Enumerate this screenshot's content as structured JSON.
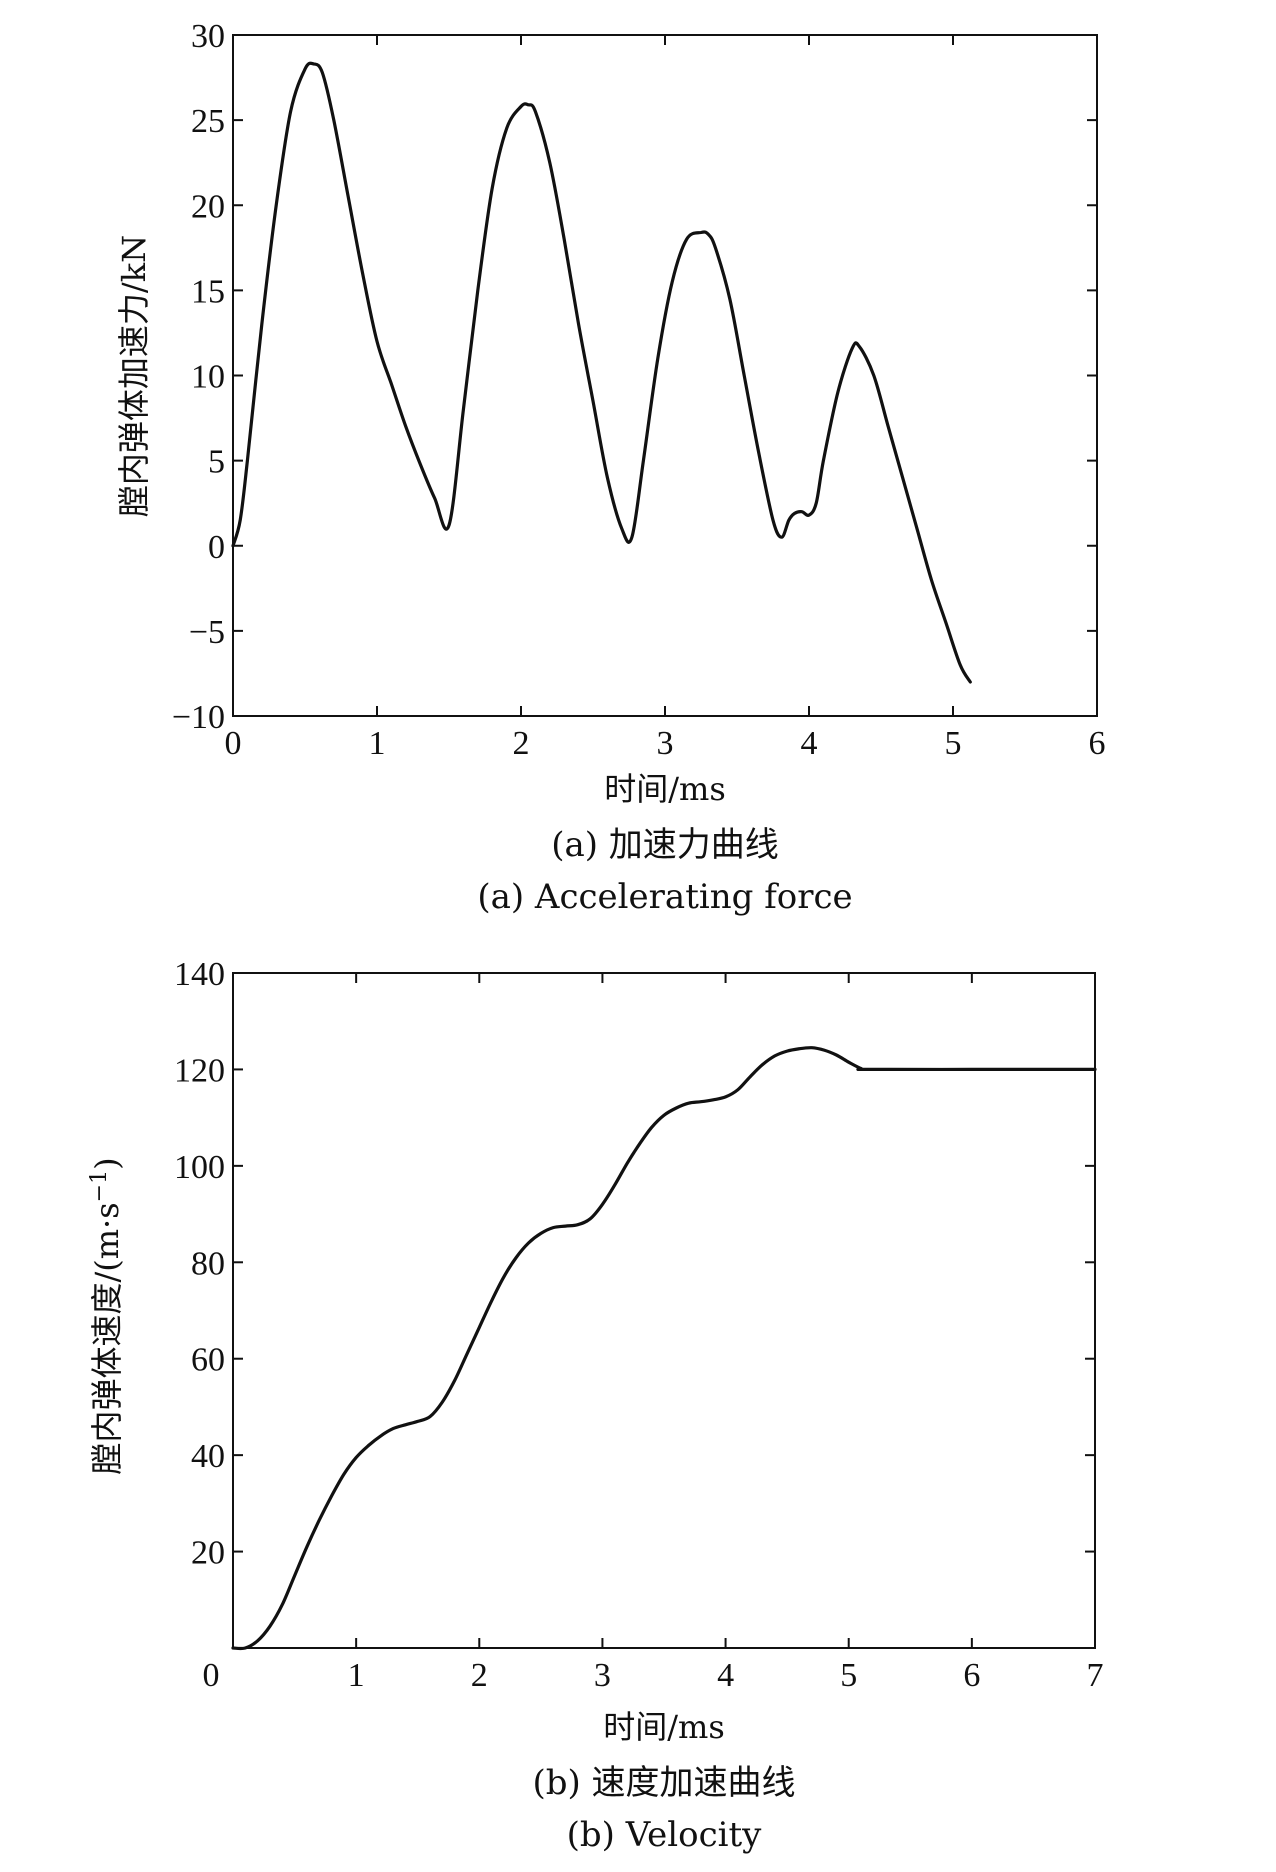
{
  "chart_data": [
    {
      "type": "line",
      "caption_cn": "(a) 加速力曲线",
      "caption_en": "(a) Accelerating force",
      "xlabel": "时间/ms",
      "ylabel": "膛内弹体加速力/kN",
      "xlim": [
        0,
        6
      ],
      "ylim": [
        -10,
        30
      ],
      "xticks": [
        0,
        1,
        2,
        3,
        4,
        5,
        6
      ],
      "yticks": [
        -10,
        -5,
        0,
        5,
        10,
        15,
        20,
        25,
        30
      ],
      "ytick_labels": [
        "−10",
        "−5",
        "0",
        "5",
        "10",
        "15",
        "20",
        "25",
        "30"
      ],
      "grid": false,
      "series": [
        {
          "x": [
            0,
            0.05,
            0.1,
            0.2,
            0.3,
            0.4,
            0.5,
            0.56,
            0.62,
            0.7,
            0.8,
            0.9,
            1.0,
            1.1,
            1.2,
            1.3,
            1.4,
            1.5,
            1.6,
            1.7,
            1.8,
            1.9,
            2.0,
            2.05,
            2.1,
            2.2,
            2.3,
            2.4,
            2.5,
            2.6,
            2.7,
            2.77,
            2.85,
            2.95,
            3.05,
            3.15,
            3.25,
            3.3,
            3.35,
            3.45,
            3.55,
            3.65,
            3.75,
            3.81,
            3.86,
            3.9,
            3.95,
            4.0,
            4.05,
            4.1,
            4.2,
            4.3,
            4.35,
            4.45,
            4.55,
            4.65,
            4.75,
            4.85,
            4.95,
            5.05,
            5.12
          ],
          "y": [
            0,
            1.5,
            5,
            13,
            20,
            25.5,
            28,
            28.3,
            27.8,
            25,
            20.5,
            16,
            12,
            9.5,
            7,
            4.8,
            2.8,
            1.2,
            8,
            15,
            21,
            24.5,
            25.8,
            25.9,
            25.5,
            22.5,
            18,
            13,
            8.5,
            4,
            1,
            0.5,
            5,
            11,
            15.5,
            18,
            18.4,
            18.3,
            17.5,
            14.5,
            10,
            5.5,
            1.5,
            0.5,
            1.5,
            1.9,
            2,
            1.8,
            2.5,
            5,
            9,
            11.6,
            11.7,
            10,
            7,
            4,
            1,
            -2,
            -4.5,
            -7,
            -8
          ]
        }
      ]
    },
    {
      "type": "line",
      "caption_cn": "(b) 速度加速曲线",
      "caption_en": "(b) Velocity",
      "xlabel": "时间/ms",
      "ylabel_main": "膛内弹体速度/(m·s",
      "ylabel_sup": "−1",
      "ylabel_end": ")",
      "xlim": [
        0,
        7
      ],
      "ylim": [
        0,
        140
      ],
      "xticks": [
        0,
        1,
        2,
        3,
        4,
        5,
        6,
        7
      ],
      "yticks": [
        20,
        40,
        60,
        80,
        100,
        120,
        140
      ],
      "xtick_labels": [
        "0",
        "1",
        "2",
        "3",
        "4",
        "5",
        "6",
        "7"
      ],
      "grid": false,
      "series": [
        {
          "x": [
            0,
            0.1,
            0.2,
            0.3,
            0.4,
            0.5,
            0.6,
            0.7,
            0.8,
            0.9,
            1.0,
            1.1,
            1.2,
            1.3,
            1.4,
            1.5,
            1.6,
            1.7,
            1.8,
            1.9,
            2.0,
            2.1,
            2.2,
            2.3,
            2.4,
            2.5,
            2.6,
            2.7,
            2.8,
            2.9,
            3.0,
            3.1,
            3.2,
            3.3,
            3.4,
            3.5,
            3.6,
            3.7,
            3.8,
            3.9,
            4.0,
            4.1,
            4.2,
            4.3,
            4.4,
            4.5,
            4.6,
            4.7,
            4.8,
            4.9,
            5.0,
            5.1,
            5.15,
            6.0,
            7.0
          ],
          "y": [
            0,
            0,
            1.5,
            4.5,
            9,
            15,
            21,
            26.5,
            31.5,
            36,
            39.5,
            42,
            44,
            45.5,
            46.3,
            47,
            48,
            51,
            55.5,
            61,
            66.5,
            72,
            77,
            81,
            84,
            86,
            87.2,
            87.5,
            87.8,
            89,
            92,
            96,
            100.5,
            104.5,
            108,
            110.5,
            112,
            113,
            113.3,
            113.7,
            114.3,
            115.8,
            118.5,
            121,
            122.8,
            123.8,
            124.3,
            124.5,
            124,
            123,
            121.5,
            120.2,
            120,
            120,
            120
          ]
        }
      ]
    }
  ]
}
